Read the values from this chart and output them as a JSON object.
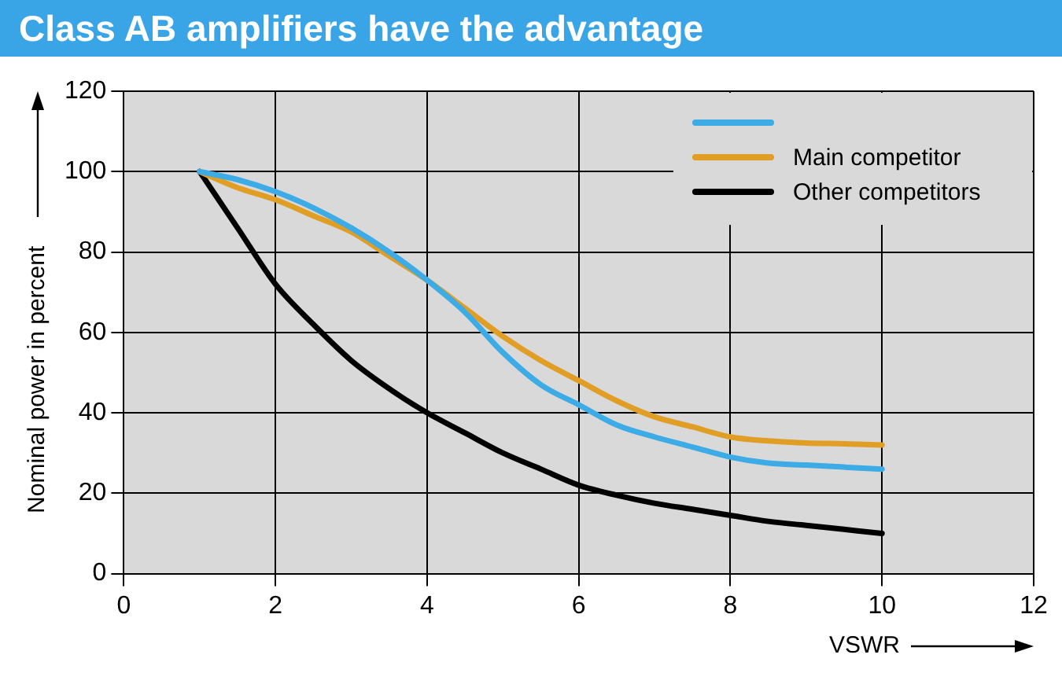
{
  "chart_data": {
    "type": "line",
    "title": "Class AB amplifiers have the advantage",
    "xlabel": "VSWR",
    "ylabel": "Nominal power in percent",
    "x": [
      1,
      1.5,
      2,
      2.5,
      3,
      3.5,
      4,
      4.5,
      5,
      5.5,
      6,
      6.5,
      7,
      7.5,
      8,
      8.5,
      9,
      9.5,
      10
    ],
    "series": [
      {
        "color": "#3cabe6",
        "values": [
          100,
          98,
          95,
          91,
          86,
          80,
          73,
          65,
          55,
          47,
          42,
          37,
          34,
          31.5,
          29,
          27.5,
          27,
          26.5,
          26
        ]
      },
      {
        "name": "Main competitor",
        "color": "#e09e25",
        "values": [
          100,
          96,
          93,
          89,
          85,
          79,
          73,
          66,
          59,
          53,
          48,
          43,
          39,
          36.5,
          34,
          33,
          32.5,
          32.3,
          32
        ]
      },
      {
        "name": "Other competitors",
        "color": "#000000",
        "values": [
          100,
          86,
          72,
          62,
          53,
          46,
          40,
          35,
          30,
          26,
          22,
          19.5,
          17.5,
          16,
          14.5,
          13,
          12,
          11,
          10
        ]
      }
    ],
    "xlim": [
      0,
      12
    ],
    "xticks": [
      0,
      2,
      4,
      6,
      8,
      10,
      12
    ],
    "ylim": [
      0,
      120
    ],
    "yticks": [
      0,
      20,
      40,
      60,
      80,
      100,
      120
    ],
    "grid": true,
    "legend": "top right",
    "marker": "none",
    "line_style": "solid"
  }
}
